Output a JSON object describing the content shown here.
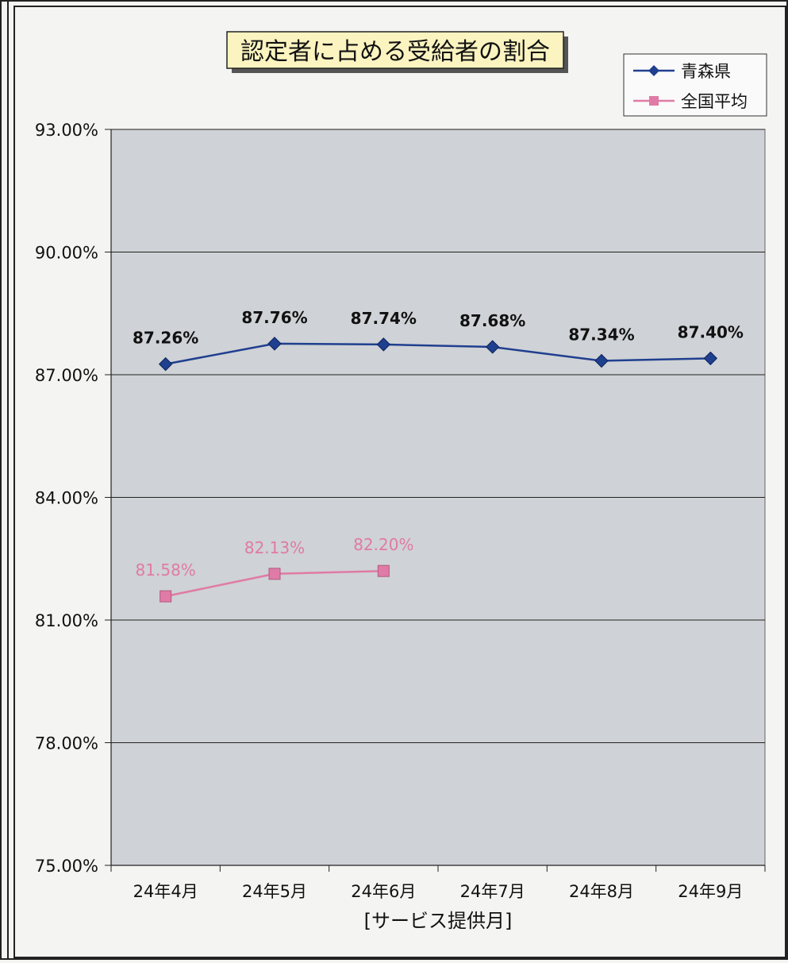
{
  "chart_data": {
    "type": "line",
    "title": "認定者に占める受給者の割合",
    "xlabel": "[サービス提供月]",
    "ylabel": "",
    "categories": [
      "24年4月",
      "24年5月",
      "24年6月",
      "24年7月",
      "24年8月",
      "24年9月"
    ],
    "ylim": [
      75,
      93
    ],
    "yticks": [
      75,
      78,
      81,
      84,
      87,
      90,
      93
    ],
    "ytick_labels": [
      "75.00%",
      "78.00%",
      "81.00%",
      "84.00%",
      "87.00%",
      "90.00%",
      "93.00%"
    ],
    "grid": true,
    "legend_position": "top-right",
    "series": [
      {
        "name": "青森県",
        "values": [
          87.26,
          87.76,
          87.74,
          87.68,
          87.34,
          87.4
        ],
        "labels": [
          "87.26%",
          "87.76%",
          "87.74%",
          "87.68%",
          "87.34%",
          "87.40%"
        ],
        "color": "#1f3f8f",
        "marker": "diamond"
      },
      {
        "name": "全国平均",
        "values": [
          81.58,
          82.13,
          82.2,
          null,
          null,
          null
        ],
        "labels": [
          "81.58%",
          "82.13%",
          "82.20%",
          null,
          null,
          null
        ],
        "color": "#e07aa6",
        "marker": "square"
      }
    ]
  }
}
